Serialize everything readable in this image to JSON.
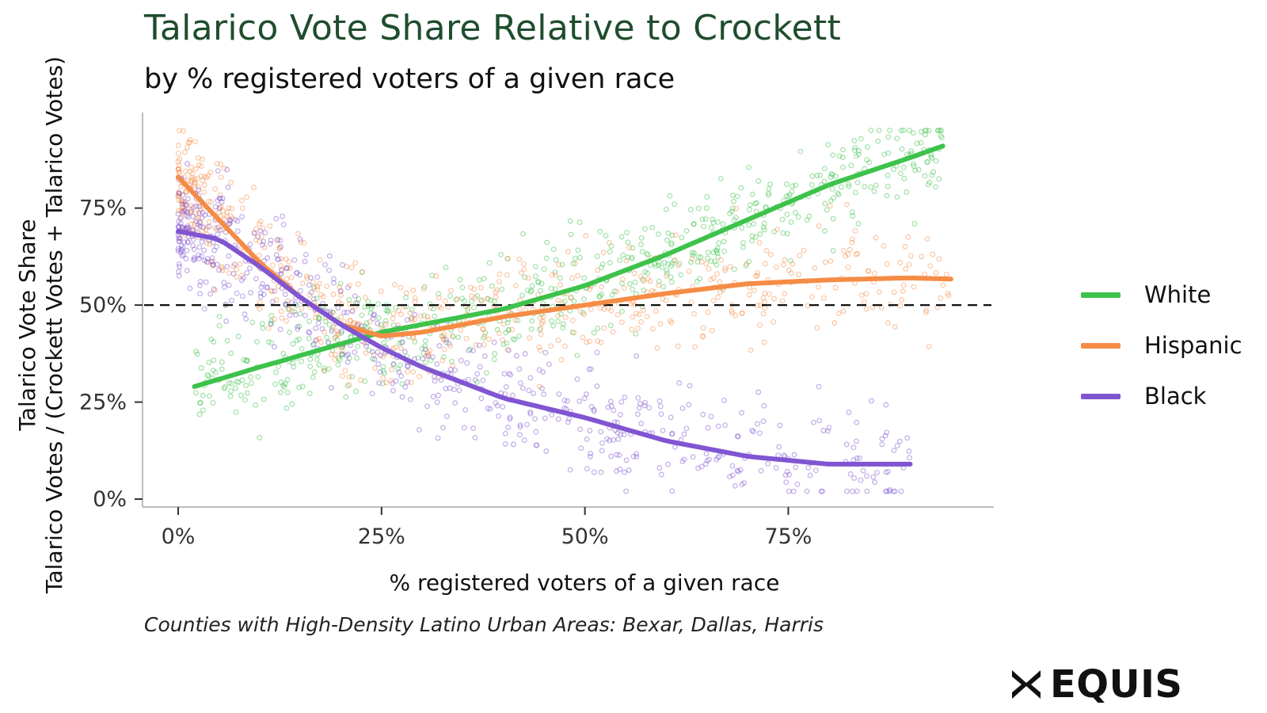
{
  "chart_data": {
    "type": "scatter",
    "title": "Talarico Vote Share Relative to Crockett",
    "subtitle": "by % registered voters of a given race",
    "xlabel": "% registered voters of a given race",
    "ylabel": "Talarico Vote Share",
    "ylabel2": "Talarico Votes / (Crockett Votes + Talarico Votes)",
    "caption": "Counties with High-Density Latino Urban Areas: Bexar, Dallas, Harris",
    "xlim": [
      0,
      0.99
    ],
    "ylim": [
      0,
      0.98
    ],
    "x_ticks": [
      {
        "value": 0,
        "label": "0%"
      },
      {
        "value": 0.25,
        "label": "25%"
      },
      {
        "value": 0.5,
        "label": "50%"
      },
      {
        "value": 0.75,
        "label": "75%"
      }
    ],
    "y_ticks": [
      {
        "value": 0,
        "label": "0%"
      },
      {
        "value": 0.25,
        "label": "25%"
      },
      {
        "value": 0.5,
        "label": "50%"
      },
      {
        "value": 0.75,
        "label": "75%"
      }
    ],
    "reference_line": {
      "y": 0.5,
      "style": "dashed"
    },
    "legend_position": "right",
    "series": [
      {
        "name": "White",
        "color": "#3dc24b",
        "smooth_x": [
          0.02,
          0.1,
          0.2,
          0.25,
          0.3,
          0.4,
          0.5,
          0.6,
          0.7,
          0.8,
          0.9,
          0.94
        ],
        "smooth_y": [
          0.29,
          0.34,
          0.4,
          0.43,
          0.45,
          0.49,
          0.55,
          0.63,
          0.72,
          0.81,
          0.88,
          0.91
        ]
      },
      {
        "name": "Hispanic",
        "color": "#f58c45",
        "smooth_x": [
          0.0,
          0.05,
          0.1,
          0.15,
          0.2,
          0.25,
          0.3,
          0.4,
          0.5,
          0.6,
          0.7,
          0.8,
          0.9,
          0.95
        ],
        "smooth_y": [
          0.83,
          0.72,
          0.61,
          0.52,
          0.45,
          0.42,
          0.43,
          0.47,
          0.5,
          0.53,
          0.555,
          0.565,
          0.57,
          0.567
        ]
      },
      {
        "name": "Black",
        "color": "#8055d1",
        "smooth_x": [
          0.0,
          0.05,
          0.1,
          0.15,
          0.2,
          0.25,
          0.3,
          0.4,
          0.5,
          0.6,
          0.7,
          0.8,
          0.9
        ],
        "smooth_y": [
          0.69,
          0.67,
          0.6,
          0.52,
          0.45,
          0.39,
          0.34,
          0.26,
          0.21,
          0.15,
          0.11,
          0.09,
          0.09
        ]
      }
    ]
  },
  "logo": {
    "text": "EQUIS"
  }
}
